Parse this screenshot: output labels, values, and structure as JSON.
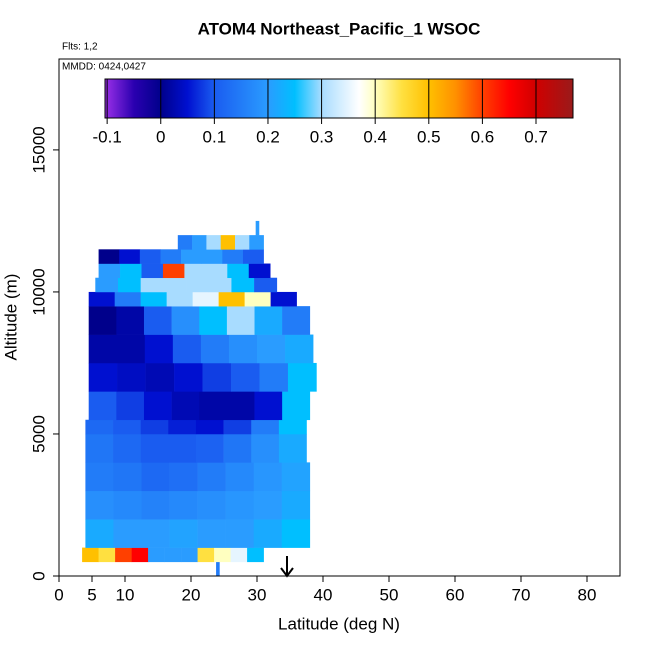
{
  "chart_data": {
    "type": "curtain",
    "title": "ATOM4 Northeast_Pacific_1 WSOC",
    "subtitle": "Flts: 1,2",
    "annotation": "MMDD: 0424,0427",
    "x_label": "Latitude (deg N)",
    "y_label": "Altitude (m)",
    "xlim": [
      0,
      85
    ],
    "xticks": [
      0,
      5,
      10,
      20,
      30,
      40,
      50,
      60,
      70,
      80
    ],
    "ylim": [
      0,
      18200
    ],
    "yticks": [
      0,
      5000,
      10000,
      15000
    ],
    "clim": [
      -0.104,
      0.769
    ],
    "cticks": [
      -0.1,
      0.0,
      0.1,
      0.2,
      0.3,
      0.4,
      0.5,
      0.6,
      0.7
    ],
    "colormap": [
      {
        "value": -0.104,
        "color": "#9b30e8"
      },
      {
        "value": -0.05,
        "color": "#2a00b0"
      },
      {
        "value": 0,
        "color": "#00008b"
      },
      {
        "value": 0.05,
        "color": "#0010d0"
      },
      {
        "value": 0.1,
        "color": "#1a5cf0"
      },
      {
        "value": 0.2,
        "color": "#2a9cff"
      },
      {
        "value": 0.25,
        "color": "#00bfff"
      },
      {
        "value": 0.3,
        "color": "#a8dcff"
      },
      {
        "value": 0.37,
        "color": "#ffffff"
      },
      {
        "value": 0.4,
        "color": "#ffffc0"
      },
      {
        "value": 0.45,
        "color": "#ffe040"
      },
      {
        "value": 0.5,
        "color": "#ffc000"
      },
      {
        "value": 0.55,
        "color": "#ff9000"
      },
      {
        "value": 0.6,
        "color": "#ff4000"
      },
      {
        "value": 0.65,
        "color": "#ff0000"
      },
      {
        "value": 0.7,
        "color": "#d00000"
      },
      {
        "value": 0.769,
        "color": "#9a1a1a"
      }
    ],
    "rows": [
      {
        "alt": [
          0,
          500
        ],
        "lat": [
          23.8,
          24.3
        ],
        "values": [
          0.15
        ]
      },
      {
        "alt": [
          500,
          1000
        ],
        "lat": [
          3.5,
          31
        ],
        "values": [
          0.5,
          0.45,
          0.6,
          0.65,
          0.2,
          0.2,
          0.2,
          0.45,
          0.4,
          0.35,
          0.25
        ]
      },
      {
        "alt": [
          1000,
          2000
        ],
        "lat": [
          4,
          38
        ],
        "values": [
          0.22,
          0.2,
          0.2,
          0.21,
          0.2,
          0.2,
          0.22,
          0.25
        ]
      },
      {
        "alt": [
          2000,
          3000
        ],
        "lat": [
          4,
          38
        ],
        "values": [
          0.18,
          0.17,
          0.16,
          0.17,
          0.18,
          0.19,
          0.2,
          0.22
        ]
      },
      {
        "alt": [
          3000,
          4000
        ],
        "lat": [
          4,
          38
        ],
        "values": [
          0.15,
          0.14,
          0.12,
          0.13,
          0.15,
          0.17,
          0.19,
          0.21
        ]
      },
      {
        "alt": [
          4000,
          5000
        ],
        "lat": [
          4,
          37.5
        ],
        "values": [
          0.14,
          0.12,
          0.1,
          0.1,
          0.11,
          0.14,
          0.18,
          0.22
        ]
      },
      {
        "alt": [
          5000,
          5500
        ],
        "lat": [
          4,
          37.5
        ],
        "values": [
          0.12,
          0.1,
          0.08,
          0.06,
          0.05,
          0.08,
          0.15,
          0.25
        ]
      },
      {
        "alt": [
          5500,
          6500
        ],
        "lat": [
          4.5,
          38
        ],
        "values": [
          0.1,
          0.08,
          0.05,
          0.03,
          0.02,
          0.02,
          0.05,
          0.25
        ]
      },
      {
        "alt": [
          6500,
          7500
        ],
        "lat": [
          4.5,
          39
        ],
        "values": [
          0.05,
          0.04,
          0.03,
          0.05,
          0.08,
          0.1,
          0.15,
          0.25
        ]
      },
      {
        "alt": [
          7500,
          8500
        ],
        "lat": [
          4.5,
          38.5
        ],
        "values": [
          0.02,
          0.02,
          0.05,
          0.1,
          0.15,
          0.18,
          0.2,
          0.22
        ]
      },
      {
        "alt": [
          8500,
          9500
        ],
        "lat": [
          4.5,
          38
        ],
        "values": [
          0.0,
          0.02,
          0.1,
          0.18,
          0.25,
          0.3,
          0.22,
          0.15
        ]
      },
      {
        "alt": [
          9500,
          10000
        ],
        "lat": [
          4.5,
          36
        ],
        "values": [
          0.05,
          0.15,
          0.25,
          0.3,
          0.35,
          0.5,
          0.4,
          0.05
        ]
      },
      {
        "alt": [
          10000,
          10500
        ],
        "lat": [
          5.5,
          33
        ],
        "values": [
          0.2,
          0.25,
          0.3,
          0.3,
          0.3,
          0.3,
          0.25,
          0.1
        ]
      },
      {
        "alt": [
          10500,
          11000
        ],
        "lat": [
          6,
          32
        ],
        "values": [
          0.2,
          0.25,
          0.1,
          0.6,
          0.3,
          0.3,
          0.25,
          0.05
        ]
      },
      {
        "alt": [
          11000,
          11500
        ],
        "lat": [
          6,
          31
        ],
        "values": [
          0.0,
          0.05,
          0.1,
          0.15,
          0.2,
          0.2,
          0.15,
          0.1
        ]
      },
      {
        "alt": [
          11500,
          12000
        ],
        "lat": [
          18,
          31
        ],
        "values": [
          0.15,
          0.2,
          0.3,
          0.5,
          0.3,
          0.2
        ]
      },
      {
        "alt": [
          12000,
          12500
        ],
        "lat": [
          29.8,
          30.3
        ],
        "values": [
          0.2
        ]
      }
    ]
  }
}
